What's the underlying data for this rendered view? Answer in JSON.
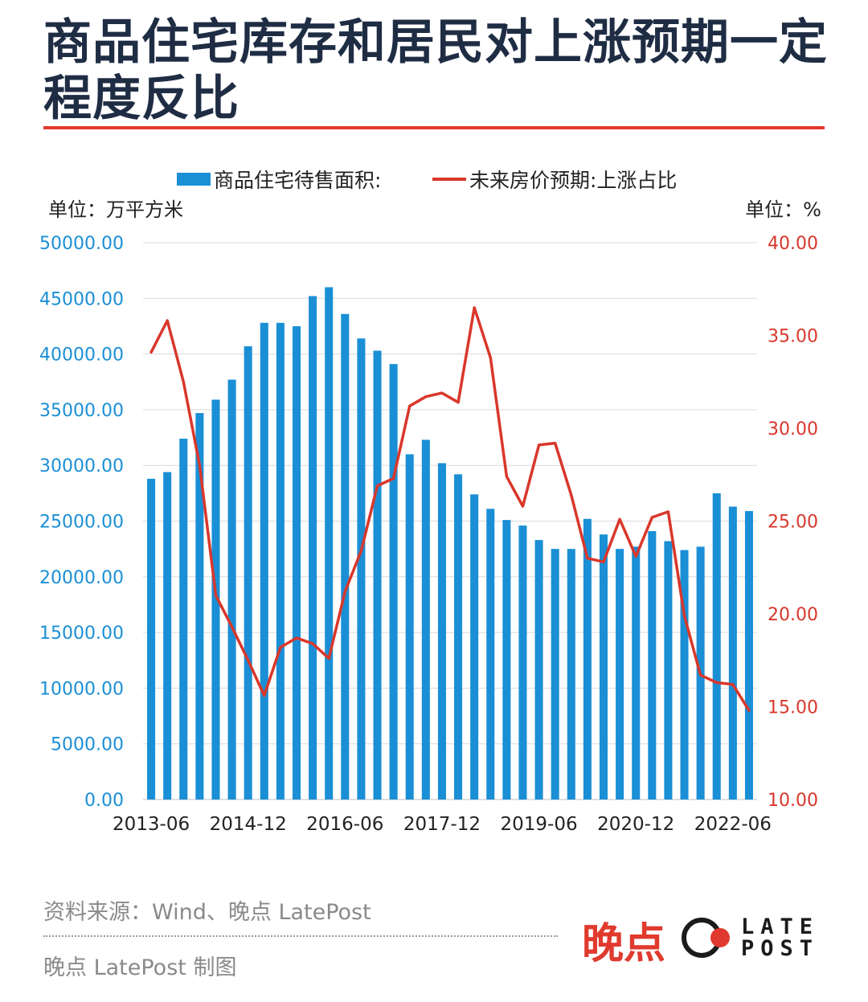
{
  "title": "商品住宅库存和居民对上涨预期一定程度反比",
  "colors": {
    "bars": "#1a8fd6",
    "line": "#d9372b",
    "title": "#1f2d44",
    "accent": "#e03a2e"
  },
  "chart_data": {
    "type": "bar+line",
    "legend": {
      "bar": "商品住宅待售面积:",
      "line": "未来房价预期:上涨占比"
    },
    "left_unit": "单位：万平方米",
    "right_unit": "单位：%",
    "left_axis": {
      "min": 0,
      "max": 50000,
      "ticks": [
        "0.00",
        "5000.00",
        "10000.00",
        "15000.00",
        "20000.00",
        "25000.00",
        "30000.00",
        "35000.00",
        "40000.00",
        "45000.00",
        "50000.00"
      ]
    },
    "right_axis": {
      "min": 10,
      "max": 40,
      "ticks": [
        "10.00",
        "15.00",
        "20.00",
        "25.00",
        "30.00",
        "35.00",
        "40.00"
      ]
    },
    "x_tick_labels": [
      "2013-06",
      "2014-12",
      "2016-06",
      "2017-12",
      "2019-06",
      "2020-12",
      "2022-06"
    ],
    "x_tick_indices": [
      0,
      6,
      12,
      18,
      24,
      30,
      36
    ],
    "grid": "horizontal",
    "bars": [
      28800,
      29400,
      32400,
      34700,
      35900,
      37700,
      40700,
      42800,
      42800,
      42500,
      45200,
      46000,
      43600,
      41400,
      40300,
      39100,
      31000,
      32300,
      30200,
      29200,
      27400,
      26100,
      25100,
      24600,
      23300,
      22500,
      22500,
      25200,
      23800,
      22500,
      22700,
      24100,
      23200,
      22400,
      22700,
      27500,
      26300,
      25900
    ],
    "line": [
      34.1,
      35.8,
      32.5,
      28.0,
      21.0,
      19.3,
      17.5,
      15.6,
      18.2,
      18.7,
      18.4,
      17.6,
      21.2,
      23.4,
      26.9,
      27.3,
      31.2,
      31.7,
      31.9,
      31.4,
      36.5,
      33.8,
      27.4,
      25.8,
      29.1,
      29.2,
      26.4,
      23.0,
      22.8,
      25.1,
      23.1,
      25.2,
      25.5,
      19.9,
      16.7,
      16.3,
      16.2,
      14.8
    ]
  },
  "footer": {
    "source": "资料来源：Wind、晚点 LatePost",
    "credit": "晚点 LatePost 制图",
    "logo_cn": "晚点",
    "logo_en_top": "LATE",
    "logo_en_bottom": "POST"
  }
}
